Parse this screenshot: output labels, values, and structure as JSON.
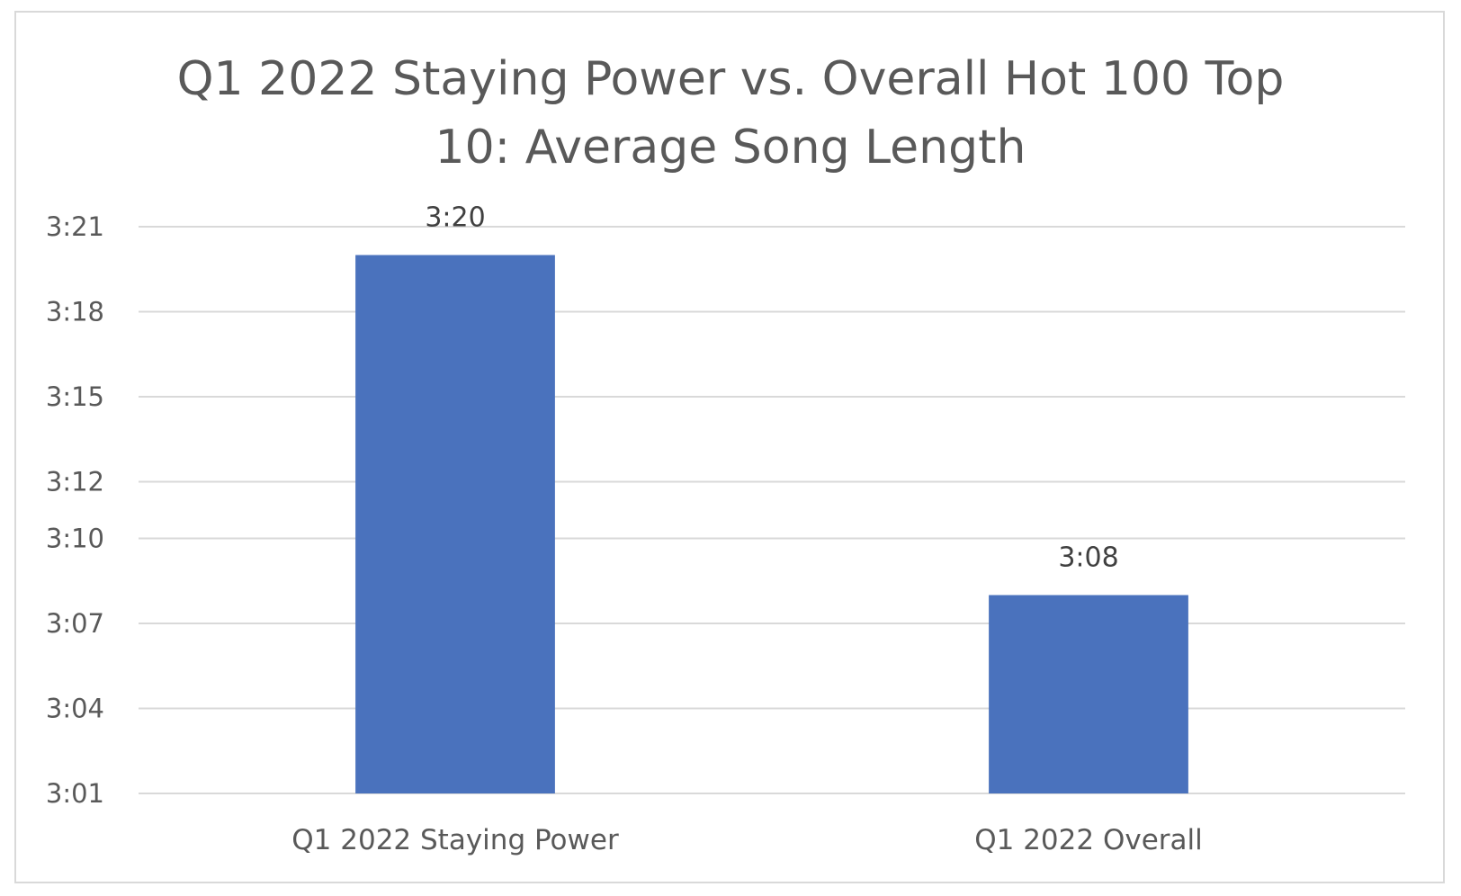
{
  "chart_data": {
    "type": "bar",
    "title_lines": [
      "Q1 2022 Staying Power vs. Overall Hot 100 Top",
      "10: Average Song Length"
    ],
    "categories": [
      "Q1 2022 Staying Power",
      "Q1 2022 Overall"
    ],
    "values_seconds": [
      200,
      188
    ],
    "data_labels": [
      "3:20",
      "3:08"
    ],
    "y_ticks_seconds": [
      181,
      184,
      187,
      190,
      192,
      195,
      198,
      201
    ],
    "y_tick_labels": [
      "3:01",
      "3:04",
      "3:07",
      "3:10",
      "3:12",
      "3:15",
      "3:18",
      "3:21"
    ],
    "ylim_seconds": [
      181,
      201
    ],
    "xlabel": "",
    "ylabel": "",
    "grid": true,
    "legend": "none",
    "bar_color": "#4a72bd",
    "grid_color": "#d9d9d9"
  }
}
